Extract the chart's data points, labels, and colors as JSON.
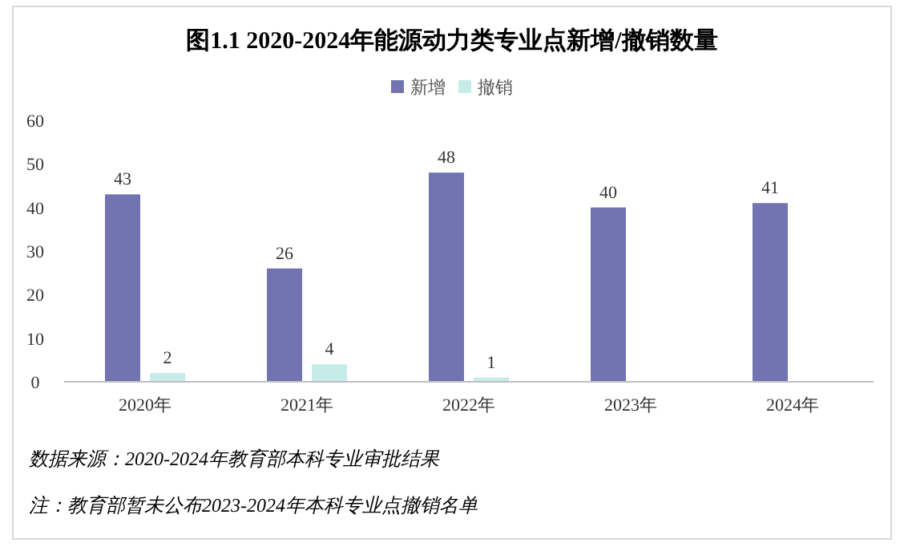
{
  "chart_data": {
    "type": "bar",
    "title": "图1.1  2020-2024年能源动力类专业点新增/撤销数量",
    "categories": [
      "2020年",
      "2021年",
      "2022年",
      "2023年",
      "2024年"
    ],
    "series": [
      {
        "name": "新增",
        "color": "#7174b0",
        "values": [
          43,
          26,
          48,
          40,
          41
        ]
      },
      {
        "name": "撤销",
        "color": "#c5ece9",
        "values": [
          2,
          4,
          1,
          null,
          null
        ]
      }
    ],
    "ylim": [
      0,
      60
    ],
    "yticks": [
      0,
      10,
      20,
      30,
      40,
      50,
      60
    ],
    "data_labels": true,
    "legend": "top",
    "annotations": [
      "数据来源：2020-2024年教育部本科专业审批结果",
      "注：教育部暂未公布2023-2024年本科专业点撤销名单"
    ]
  }
}
